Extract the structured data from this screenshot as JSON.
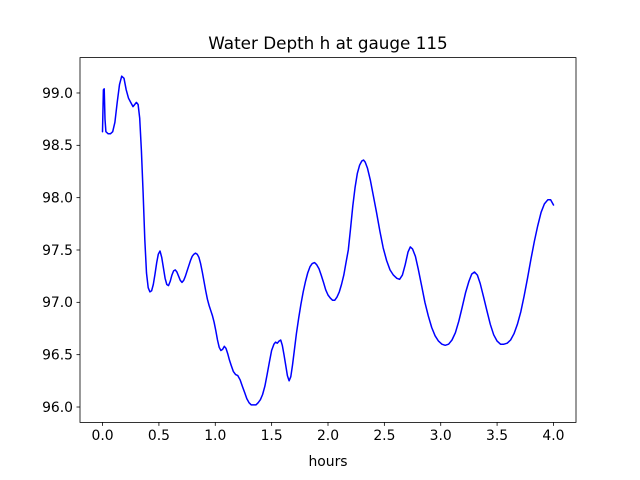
{
  "figure": {
    "title": "Water Depth h at gauge 115",
    "xlabel": "hours"
  },
  "chart_data": {
    "type": "line",
    "title": "Water Depth h at gauge 115",
    "xlabel": "hours",
    "ylabel": "",
    "grid": false,
    "legend": null,
    "background_color": "#ffffff",
    "spine_color": "#000000",
    "xlim": [
      -0.2,
      4.2
    ],
    "ylim": [
      95.853,
      99.338
    ],
    "xticks": [
      0.0,
      0.5,
      1.0,
      1.5,
      2.0,
      2.5,
      3.0,
      3.5,
      4.0
    ],
    "xtick_labels": [
      "0.0",
      "0.5",
      "1.0",
      "1.5",
      "2.0",
      "2.5",
      "3.0",
      "3.5",
      "4.0"
    ],
    "yticks": [
      96.0,
      96.5,
      97.0,
      97.5,
      98.0,
      98.5,
      99.0
    ],
    "ytick_labels": [
      "96.0",
      "96.5",
      "97.0",
      "97.5",
      "98.0",
      "98.5",
      "99.0"
    ],
    "series": [
      {
        "name": "water-depth-h",
        "color": "#0000ff",
        "line_width": 1.5,
        "points": [
          [
            0.0,
            98.63
          ],
          [
            0.008,
            99.03
          ],
          [
            0.015,
            99.04
          ],
          [
            0.022,
            98.75
          ],
          [
            0.03,
            98.63
          ],
          [
            0.05,
            98.61
          ],
          [
            0.07,
            98.61
          ],
          [
            0.09,
            98.63
          ],
          [
            0.11,
            98.72
          ],
          [
            0.13,
            98.91
          ],
          [
            0.15,
            99.08
          ],
          [
            0.17,
            99.16
          ],
          [
            0.19,
            99.14
          ],
          [
            0.21,
            99.03
          ],
          [
            0.23,
            98.95
          ],
          [
            0.25,
            98.91
          ],
          [
            0.27,
            98.87
          ],
          [
            0.285,
            98.89
          ],
          [
            0.3,
            98.91
          ],
          [
            0.315,
            98.89
          ],
          [
            0.33,
            98.76
          ],
          [
            0.345,
            98.45
          ],
          [
            0.36,
            98.05
          ],
          [
            0.375,
            97.6
          ],
          [
            0.39,
            97.28
          ],
          [
            0.405,
            97.14
          ],
          [
            0.42,
            97.1
          ],
          [
            0.435,
            97.11
          ],
          [
            0.45,
            97.17
          ],
          [
            0.465,
            97.27
          ],
          [
            0.48,
            97.38
          ],
          [
            0.495,
            97.46
          ],
          [
            0.51,
            97.49
          ],
          [
            0.525,
            97.43
          ],
          [
            0.54,
            97.33
          ],
          [
            0.555,
            97.23
          ],
          [
            0.57,
            97.17
          ],
          [
            0.585,
            97.16
          ],
          [
            0.6,
            97.2
          ],
          [
            0.615,
            97.26
          ],
          [
            0.63,
            97.3
          ],
          [
            0.645,
            97.31
          ],
          [
            0.66,
            97.29
          ],
          [
            0.675,
            97.25
          ],
          [
            0.69,
            97.21
          ],
          [
            0.705,
            97.19
          ],
          [
            0.72,
            97.21
          ],
          [
            0.735,
            97.25
          ],
          [
            0.75,
            97.3
          ],
          [
            0.765,
            97.35
          ],
          [
            0.78,
            97.4
          ],
          [
            0.795,
            97.44
          ],
          [
            0.81,
            97.46
          ],
          [
            0.825,
            97.47
          ],
          [
            0.84,
            97.46
          ],
          [
            0.855,
            97.43
          ],
          [
            0.87,
            97.37
          ],
          [
            0.885,
            97.29
          ],
          [
            0.9,
            97.2
          ],
          [
            0.915,
            97.11
          ],
          [
            0.93,
            97.03
          ],
          [
            0.945,
            96.97
          ],
          [
            0.96,
            96.92
          ],
          [
            0.975,
            96.87
          ],
          [
            0.99,
            96.81
          ],
          [
            1.005,
            96.73
          ],
          [
            1.02,
            96.64
          ],
          [
            1.035,
            96.57
          ],
          [
            1.05,
            96.54
          ],
          [
            1.065,
            96.55
          ],
          [
            1.08,
            96.58
          ],
          [
            1.095,
            96.56
          ],
          [
            1.11,
            96.51
          ],
          [
            1.125,
            96.45
          ],
          [
            1.14,
            96.4
          ],
          [
            1.16,
            96.34
          ],
          [
            1.18,
            96.31
          ],
          [
            1.2,
            96.3
          ],
          [
            1.22,
            96.26
          ],
          [
            1.24,
            96.2
          ],
          [
            1.26,
            96.14
          ],
          [
            1.28,
            96.08
          ],
          [
            1.3,
            96.04
          ],
          [
            1.32,
            96.02
          ],
          [
            1.34,
            96.02
          ],
          [
            1.36,
            96.02
          ],
          [
            1.38,
            96.04
          ],
          [
            1.4,
            96.07
          ],
          [
            1.42,
            96.12
          ],
          [
            1.44,
            96.2
          ],
          [
            1.46,
            96.31
          ],
          [
            1.48,
            96.43
          ],
          [
            1.5,
            96.54
          ],
          [
            1.52,
            96.6
          ],
          [
            1.535,
            96.62
          ],
          [
            1.55,
            96.61
          ],
          [
            1.565,
            96.63
          ],
          [
            1.58,
            96.64
          ],
          [
            1.595,
            96.59
          ],
          [
            1.61,
            96.5
          ],
          [
            1.625,
            96.4
          ],
          [
            1.64,
            96.3
          ],
          [
            1.655,
            96.25
          ],
          [
            1.67,
            96.29
          ],
          [
            1.685,
            96.4
          ],
          [
            1.7,
            96.53
          ],
          [
            1.72,
            96.7
          ],
          [
            1.74,
            96.85
          ],
          [
            1.76,
            96.98
          ],
          [
            1.78,
            97.1
          ],
          [
            1.8,
            97.2
          ],
          [
            1.82,
            97.28
          ],
          [
            1.84,
            97.34
          ],
          [
            1.86,
            97.37
          ],
          [
            1.88,
            97.38
          ],
          [
            1.9,
            97.36
          ],
          [
            1.92,
            97.32
          ],
          [
            1.94,
            97.26
          ],
          [
            1.96,
            97.19
          ],
          [
            1.98,
            97.12
          ],
          [
            2.0,
            97.07
          ],
          [
            2.02,
            97.04
          ],
          [
            2.04,
            97.02
          ],
          [
            2.06,
            97.02
          ],
          [
            2.08,
            97.05
          ],
          [
            2.1,
            97.1
          ],
          [
            2.12,
            97.17
          ],
          [
            2.14,
            97.26
          ],
          [
            2.16,
            97.38
          ],
          [
            2.18,
            97.5
          ],
          [
            2.2,
            97.7
          ],
          [
            2.22,
            97.92
          ],
          [
            2.24,
            98.1
          ],
          [
            2.26,
            98.23
          ],
          [
            2.28,
            98.31
          ],
          [
            2.3,
            98.35
          ],
          [
            2.315,
            98.36
          ],
          [
            2.33,
            98.34
          ],
          [
            2.35,
            98.28
          ],
          [
            2.375,
            98.17
          ],
          [
            2.4,
            98.03
          ],
          [
            2.43,
            97.86
          ],
          [
            2.46,
            97.68
          ],
          [
            2.49,
            97.52
          ],
          [
            2.52,
            97.4
          ],
          [
            2.55,
            97.31
          ],
          [
            2.58,
            97.26
          ],
          [
            2.61,
            97.23
          ],
          [
            2.635,
            97.22
          ],
          [
            2.66,
            97.26
          ],
          [
            2.685,
            97.36
          ],
          [
            2.71,
            97.48
          ],
          [
            2.73,
            97.53
          ],
          [
            2.75,
            97.51
          ],
          [
            2.775,
            97.44
          ],
          [
            2.8,
            97.32
          ],
          [
            2.83,
            97.16
          ],
          [
            2.86,
            97.0
          ],
          [
            2.89,
            96.87
          ],
          [
            2.92,
            96.76
          ],
          [
            2.95,
            96.68
          ],
          [
            2.98,
            96.63
          ],
          [
            3.01,
            96.6
          ],
          [
            3.04,
            96.59
          ],
          [
            3.07,
            96.6
          ],
          [
            3.1,
            96.64
          ],
          [
            3.13,
            96.71
          ],
          [
            3.16,
            96.82
          ],
          [
            3.19,
            96.95
          ],
          [
            3.22,
            97.09
          ],
          [
            3.25,
            97.2
          ],
          [
            3.275,
            97.27
          ],
          [
            3.3,
            97.29
          ],
          [
            3.325,
            97.26
          ],
          [
            3.35,
            97.18
          ],
          [
            3.38,
            97.05
          ],
          [
            3.41,
            96.92
          ],
          [
            3.44,
            96.79
          ],
          [
            3.47,
            96.69
          ],
          [
            3.5,
            96.63
          ],
          [
            3.53,
            96.6
          ],
          [
            3.56,
            96.6
          ],
          [
            3.59,
            96.61
          ],
          [
            3.62,
            96.64
          ],
          [
            3.65,
            96.7
          ],
          [
            3.68,
            96.79
          ],
          [
            3.71,
            96.91
          ],
          [
            3.74,
            97.06
          ],
          [
            3.77,
            97.23
          ],
          [
            3.8,
            97.41
          ],
          [
            3.83,
            97.58
          ],
          [
            3.86,
            97.73
          ],
          [
            3.89,
            97.86
          ],
          [
            3.92,
            97.94
          ],
          [
            3.95,
            97.98
          ],
          [
            3.975,
            97.98
          ],
          [
            4.0,
            97.93
          ]
        ]
      }
    ]
  }
}
